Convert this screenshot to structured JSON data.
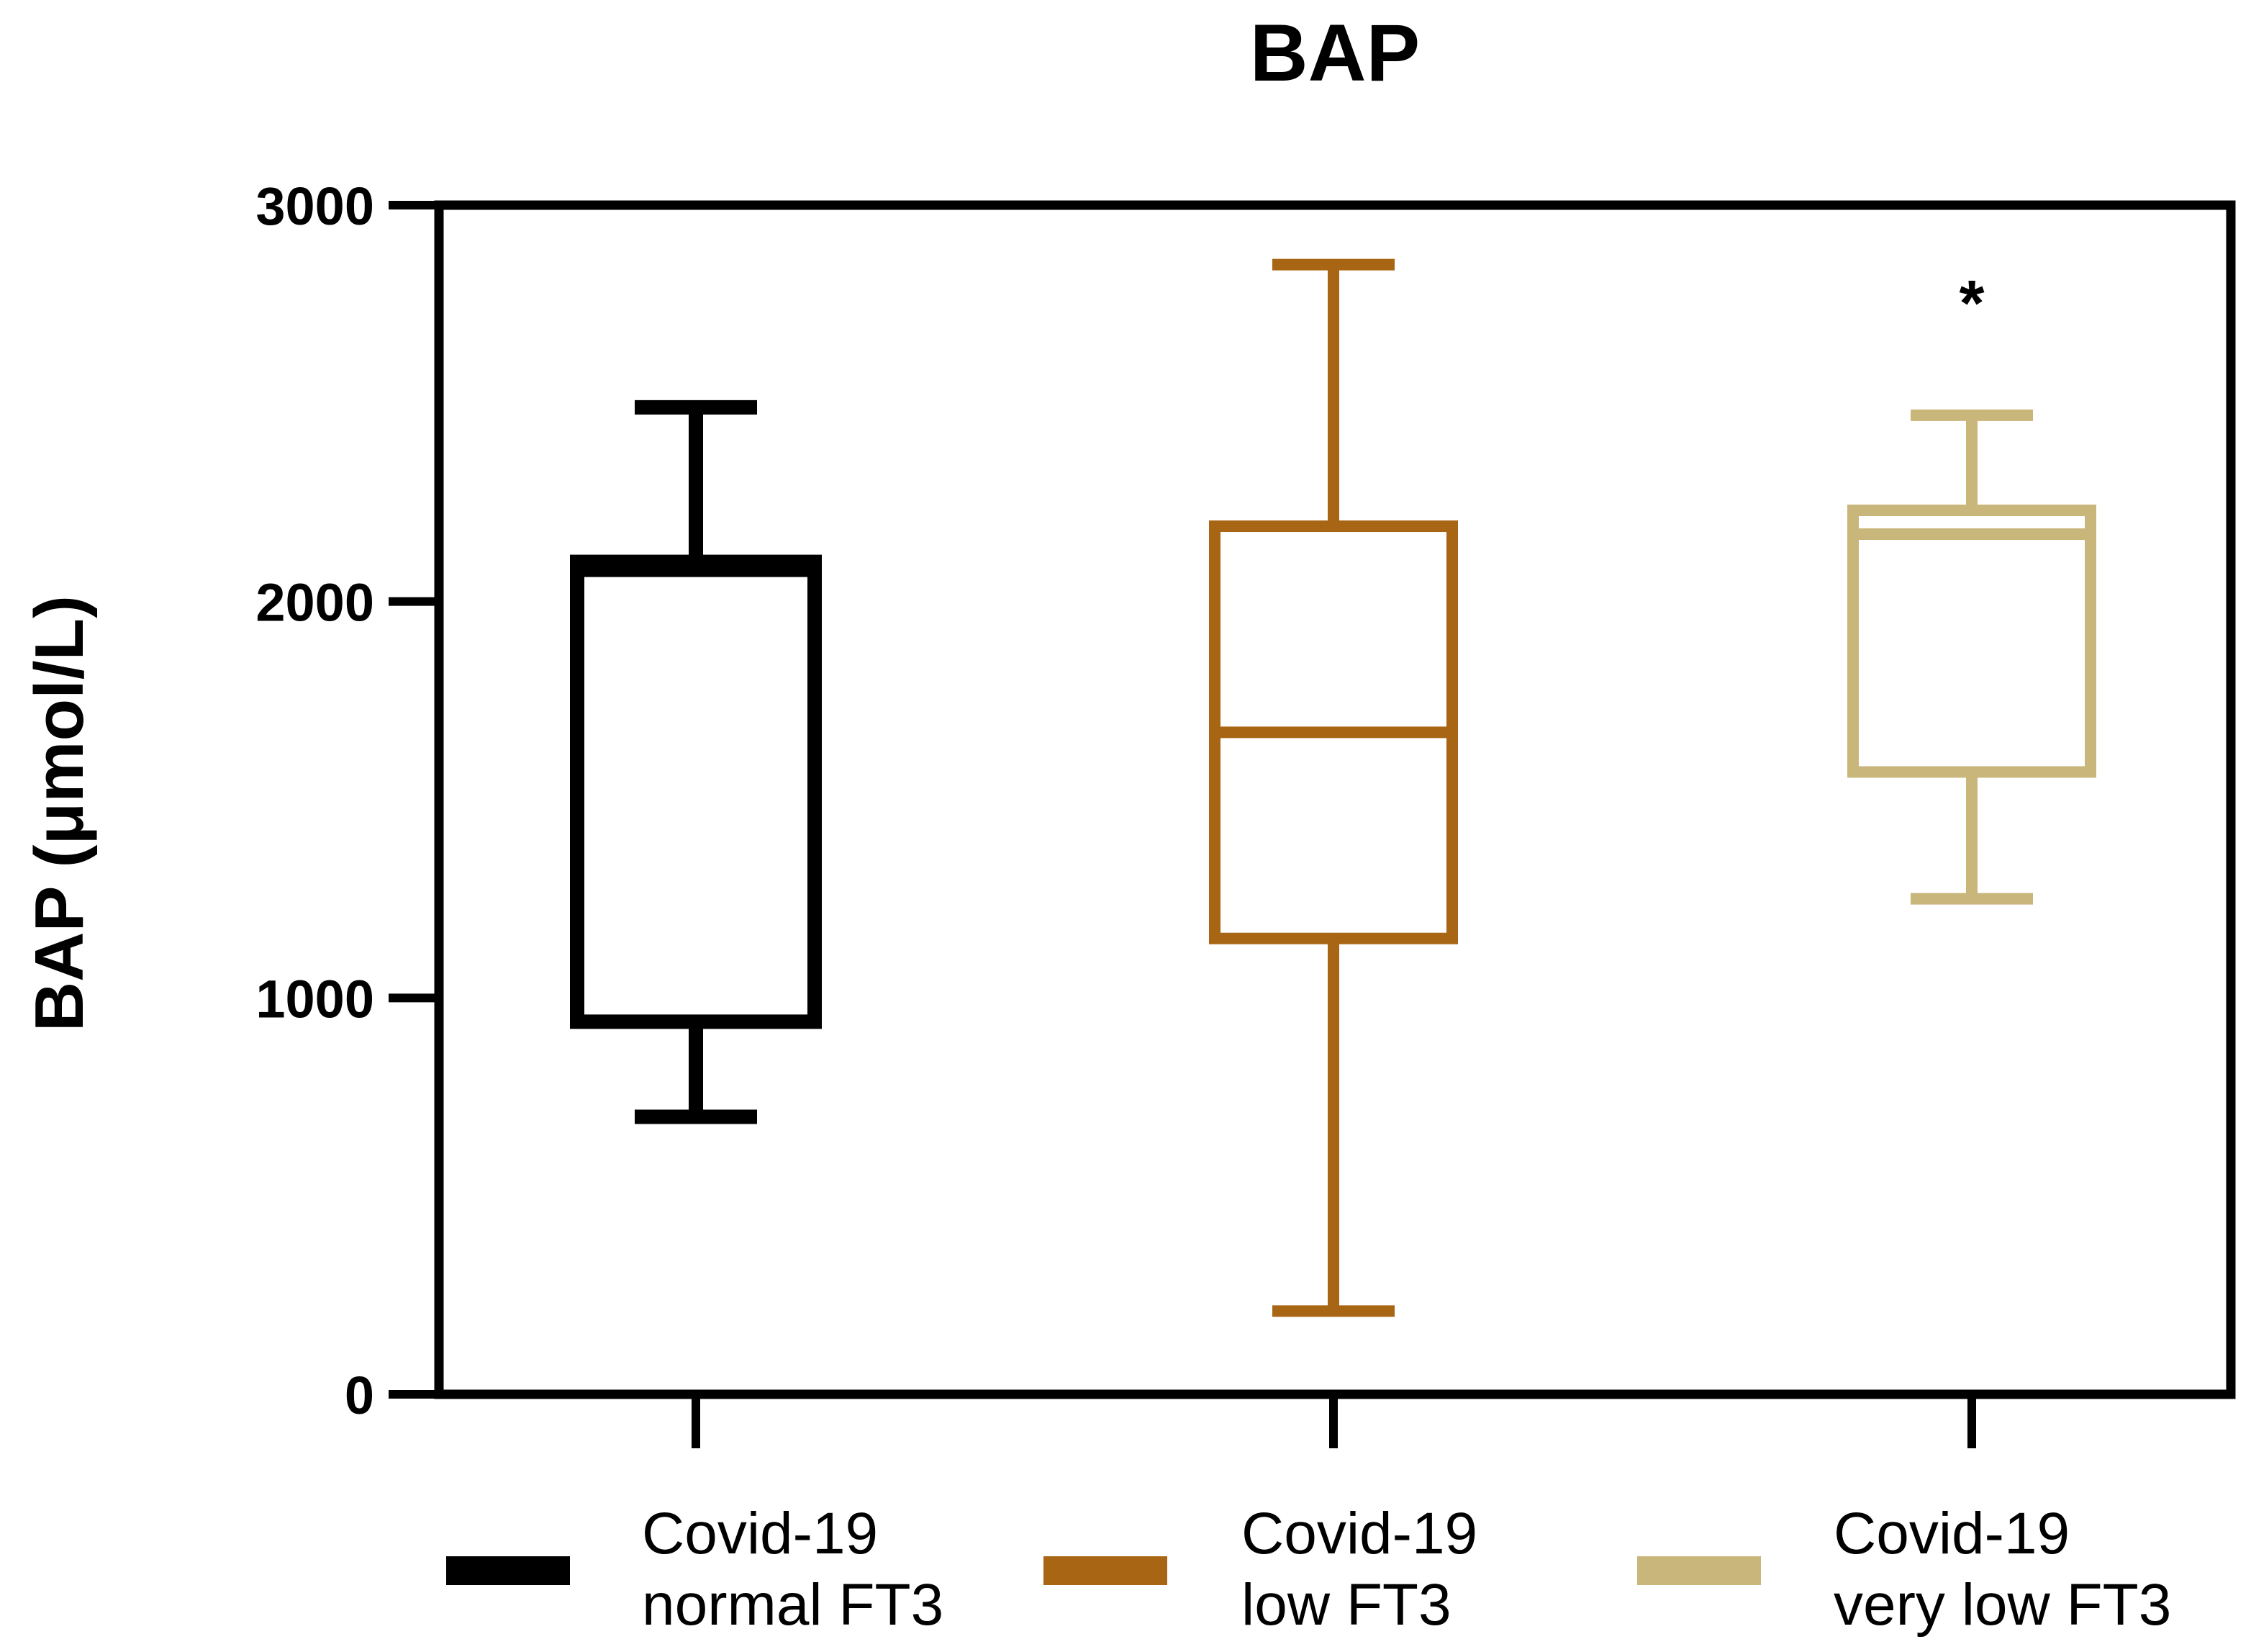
{
  "chart_data": {
    "type": "box",
    "title": "BAP",
    "ylabel": "BAP (μmol/L)",
    "xlabel": "",
    "ylim": [
      0,
      3000
    ],
    "yticks": [
      0,
      1000,
      2000,
      3000
    ],
    "grid": false,
    "legend_position": "bottom",
    "annotation": "*",
    "series": [
      {
        "name_line1": "Covid-19",
        "name_line2": "normal FT3",
        "color": "#000000",
        "whisker_min": 700,
        "q1": 940,
        "median": 2080,
        "q3": 2100,
        "whisker_max": 2490
      },
      {
        "name_line1": "Covid-19",
        "name_line2": "low FT3",
        "color": "#A86614",
        "whisker_min": 210,
        "q1": 1150,
        "median": 1670,
        "q3": 2190,
        "whisker_max": 2850
      },
      {
        "name_line1": "Covid-19",
        "name_line2": "very low FT3",
        "color": "#C9B67B",
        "whisker_min": 1250,
        "q1": 1570,
        "median": 2170,
        "q3": 2230,
        "whisker_max": 2470
      }
    ]
  }
}
